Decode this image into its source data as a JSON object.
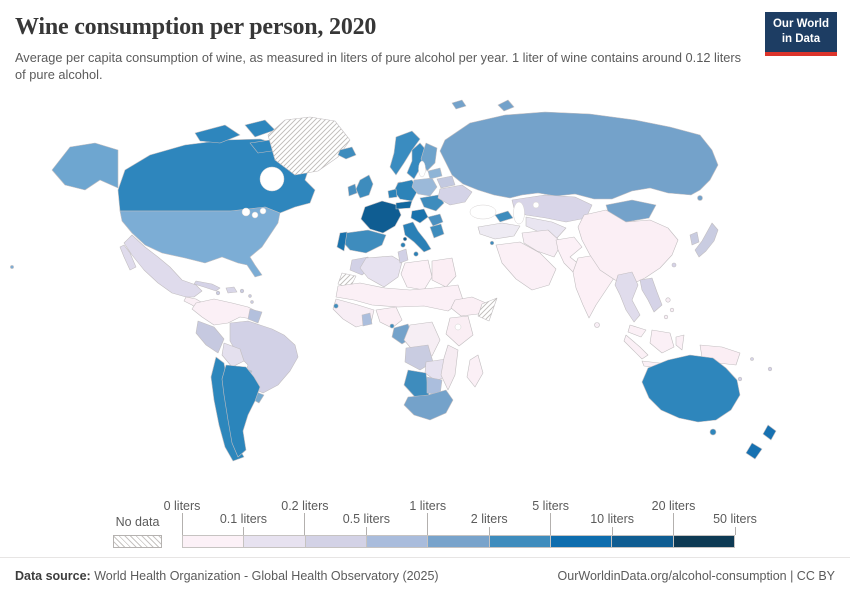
{
  "header": {
    "title": "Wine consumption per person, 2020",
    "subtitle": "Average per capita consumption of wine, as measured in liters of pure alcohol per year. 1 liter of wine contains around 0.12 liters of pure alcohol.",
    "logo": {
      "line1": "Our World",
      "line2": "in Data",
      "bg_color": "#1d3d63",
      "accent_color": "#dc342b"
    }
  },
  "legend": {
    "no_data_label": "No data",
    "tick_labels": [
      "0 liters",
      "0.1 liters",
      "0.2 liters",
      "0.5 liters",
      "1 liters",
      "2 liters",
      "5 liters",
      "10 liters",
      "20 liters",
      "50 liters"
    ]
  },
  "footer": {
    "datasource_label": "Data source:",
    "datasource_value": " World Health Organization - Global Health Observatory (2025)",
    "link": "OurWorldinData.org/alcohol-consumption",
    "divider": " | ",
    "license": "CC BY"
  },
  "chart_data": {
    "type": "choropleth",
    "title": "Wine consumption per person, 2020",
    "unit": "liters of pure alcohol per year",
    "legend_bins": [
      {
        "label": "0–0.1 liters",
        "min": 0,
        "max": 0.1,
        "color": "#fcf1f7"
      },
      {
        "label": "0.1–0.2 liters",
        "min": 0.1,
        "max": 0.2,
        "color": "#e7e2f0"
      },
      {
        "label": "0.2–0.5 liters",
        "min": 0.2,
        "max": 0.5,
        "color": "#d3d2e6"
      },
      {
        "label": "0.5–1 liters",
        "min": 0.5,
        "max": 1,
        "color": "#a9bcdc"
      },
      {
        "label": "1–2 liters",
        "min": 1,
        "max": 2,
        "color": "#78a3cb"
      },
      {
        "label": "2–5 liters",
        "min": 2,
        "max": 5,
        "color": "#3e8cbd"
      },
      {
        "label": "5–10 liters",
        "min": 5,
        "max": 10,
        "color": "#0e6dae"
      },
      {
        "label": "10–20 liters",
        "min": 10,
        "max": 20,
        "color": "#0f5d92"
      },
      {
        "label": "20–50 liters",
        "min": 20,
        "max": 50,
        "color": "#0d3a54"
      }
    ],
    "no_data_regions": [
      "Greenland",
      "Western Sahara",
      "Somalia"
    ],
    "countries": [
      {
        "name": "France",
        "range": "10-20"
      },
      {
        "name": "Portugal",
        "range": "5-10"
      },
      {
        "name": "Italy",
        "range": "5-10"
      },
      {
        "name": "Switzerland & Austria",
        "range": "5-10"
      },
      {
        "name": "Croatia & Slovenia",
        "range": "5-10"
      },
      {
        "name": "New Zealand",
        "range": "5-10"
      },
      {
        "name": "Spain",
        "range": "2-5"
      },
      {
        "name": "United Kingdom",
        "range": "2-5"
      },
      {
        "name": "Ireland",
        "range": "2-5"
      },
      {
        "name": "Iceland",
        "range": "2-5"
      },
      {
        "name": "Norway",
        "range": "2-5"
      },
      {
        "name": "Sweden",
        "range": "2-5"
      },
      {
        "name": "Denmark",
        "range": "2-5"
      },
      {
        "name": "Germany",
        "range": "2-5"
      },
      {
        "name": "Greece",
        "range": "2-5"
      },
      {
        "name": "Hungary & Romania",
        "range": "2-5"
      },
      {
        "name": "Serbia & Bulgaria",
        "range": "2-5"
      },
      {
        "name": "Georgia",
        "range": "2-5"
      },
      {
        "name": "Canada",
        "range": "2-5"
      },
      {
        "name": "Australia",
        "range": "2-5"
      },
      {
        "name": "Argentina",
        "range": "2-5"
      },
      {
        "name": "Chile",
        "range": "2-5"
      },
      {
        "name": "Namibia",
        "range": "2-5"
      },
      {
        "name": "United States",
        "range": "1-2"
      },
      {
        "name": "Russia",
        "range": "1-2"
      },
      {
        "name": "Finland",
        "range": "1-2"
      },
      {
        "name": "Mongolia",
        "range": "1-2"
      },
      {
        "name": "Uruguay",
        "range": "1-2"
      },
      {
        "name": "South Africa",
        "range": "1-2"
      },
      {
        "name": "Gabon & Congo",
        "range": "1-2"
      },
      {
        "name": "Poland",
        "range": "0.5-1"
      },
      {
        "name": "Baltic states",
        "range": "0.5-1"
      },
      {
        "name": "Belarus",
        "range": "0.5-1"
      },
      {
        "name": "Paraguay",
        "range": "0.5-1"
      },
      {
        "name": "Guyanas",
        "range": "0.5-1"
      },
      {
        "name": "Ghana",
        "range": "0.5-1"
      },
      {
        "name": "Botswana",
        "range": "0.5-1"
      },
      {
        "name": "Mexico",
        "range": "0.2-0.5"
      },
      {
        "name": "Brazil",
        "range": "0.2-0.5"
      },
      {
        "name": "Peru",
        "range": "0.2-0.5"
      },
      {
        "name": "Cuba",
        "range": "0.2-0.5"
      },
      {
        "name": "Ukraine",
        "range": "0.2-0.5"
      },
      {
        "name": "Kazakhstan",
        "range": "0.2-0.5"
      },
      {
        "name": "Japan",
        "range": "0.2-0.5"
      },
      {
        "name": "South Korea",
        "range": "0.2-0.5"
      },
      {
        "name": "Morocco",
        "range": "0.2-0.5"
      },
      {
        "name": "Tunisia",
        "range": "0.2-0.5"
      },
      {
        "name": "Angola",
        "range": "0.2-0.5"
      },
      {
        "name": "Vietnam & Laos",
        "range": "0.2-0.5"
      },
      {
        "name": "Bolivia",
        "range": "0.1-0.2"
      },
      {
        "name": "Algeria",
        "range": "0.1-0.2"
      },
      {
        "name": "Zambia & Zimbabwe",
        "range": "0.1-0.2"
      },
      {
        "name": "Myanmar & Thailand",
        "range": "0.1-0.2"
      },
      {
        "name": "China",
        "range": "0-0.1"
      },
      {
        "name": "India",
        "range": "0-0.1"
      },
      {
        "name": "Indonesia",
        "range": "0-0.1"
      },
      {
        "name": "Turkey",
        "range": "0-0.1"
      },
      {
        "name": "Iran",
        "range": "0-0.1"
      },
      {
        "name": "Saudi Arabia",
        "range": "0-0.1"
      },
      {
        "name": "Egypt",
        "range": "0-0.1"
      },
      {
        "name": "Libya",
        "range": "0-0.1"
      },
      {
        "name": "Ethiopia",
        "range": "0-0.1"
      },
      {
        "name": "Kenya & Tanzania",
        "range": "0-0.1"
      },
      {
        "name": "Madagascar",
        "range": "0-0.1"
      },
      {
        "name": "Colombia & Venezuela",
        "range": "0-0.1"
      }
    ]
  },
  "map": {
    "border_color": "#c2bec0",
    "hatch_color": "#bdbab8",
    "colors": {
      "greenland": "nodata",
      "canada": "#2e86bd",
      "alaska": "#6ea6d0",
      "usa": "#7cadd5",
      "hawaii": "#7cadd5",
      "mexico": "#dfdbec",
      "central_america": "#faeff5",
      "panama_costa_rica": "#cfd0e4",
      "cuba": "#d5d3e7",
      "hispaniola": "#d8d6e8",
      "caribbean": "#c9cce1",
      "northern_south_america": "#fbf0f6",
      "guyanas": "#b3c0dd",
      "brazil": "#d2d1e6",
      "peru": "#c6c9e0",
      "bolivia": "#e4e0ee",
      "paraguay": "#abbedd",
      "uruguay": "#74a9cf",
      "chile": "#2d87bc",
      "argentina": "#2b85bb",
      "iceland": "#3e8cbd",
      "norway": "#3a8cc0",
      "sweden": "#3589bf",
      "finland": "#6fa3cb",
      "denmark": "#2f86bb",
      "uk": "#3e8cbd",
      "ireland": "#4a90c0",
      "france": "#0f5d92",
      "germany": "#2d83b8",
      "benelux": "#2d83b8",
      "spain": "#3e8cbd",
      "portugal": "#1a72ac",
      "italy": "#2a80b6",
      "alpine": "#11689f",
      "poland": "#9bb9d9",
      "hungary_romania": "#3e8cbd",
      "west_balkans": "#1a72ac",
      "serbia_bulgaria": "#4a90c0",
      "greece": "#3e8cbd",
      "baltics": "#8fb4d6",
      "belarus": "#c3c9e0",
      "ukraine": "#d4d3e7",
      "russia": "#74a2ca",
      "svalbard": "#74a2ca",
      "georgia": "#3e8cbd",
      "cyprus": "#3e8cbd",
      "turkey": "#eeebf3",
      "arabia": "#fbf0f6",
      "iran": "#f8eef5",
      "kazakhstan": "#d8d5e8",
      "uzbekistan": "#e9e5f1",
      "afghanistan_pakistan": "#fcf1f7",
      "mongolia": "#74a2ca",
      "china": "#fbeff5",
      "india": "#fcf0f6",
      "sri_lanka": "#f8eef5",
      "myanmar_thailand": "#e0dcec",
      "vietnam_laos": "#d5d3e7",
      "malaysia": "#fbf0f6",
      "indonesia": "#fbf0f6",
      "new_guinea": "#fbeef4",
      "philippines": "#f8eef5",
      "japan": "#c9cce1",
      "korea": "#c9cce1",
      "taiwan": "#d5d3e7",
      "morocco": "#d2d1e6",
      "western_sahara": "nodata",
      "algeria": "#e7e2f0",
      "tunisia": "#d2d1e6",
      "libya": "#fcf1f7",
      "egypt": "#fbeef4",
      "sahel": "#fbf0f6",
      "west_africa": "#f8eef5",
      "ghana": "#abbedd",
      "guinea_bissau": "#3e8cbd",
      "nigeria": "#fbeff5",
      "gabon_congo": "#74a2ca",
      "eq_guinea": "#3e8cbd",
      "drc": "#f6eef4",
      "ethiopia": "#fbeff5",
      "somalia": "nodata",
      "kenya_tanzania": "#faeef4",
      "angola": "#c9cce1",
      "zambia_zimbabwe": "#e7e2f0",
      "mozambique": "#f6ecf2",
      "namibia": "#3e8cbd",
      "botswana": "#abbedd",
      "south_africa": "#74a2ca",
      "madagascar": "#fbf0f6",
      "australia": "#2e86bc",
      "new_zealand": "#1771b1",
      "pacific_islands": "#d5d3e7"
    }
  }
}
